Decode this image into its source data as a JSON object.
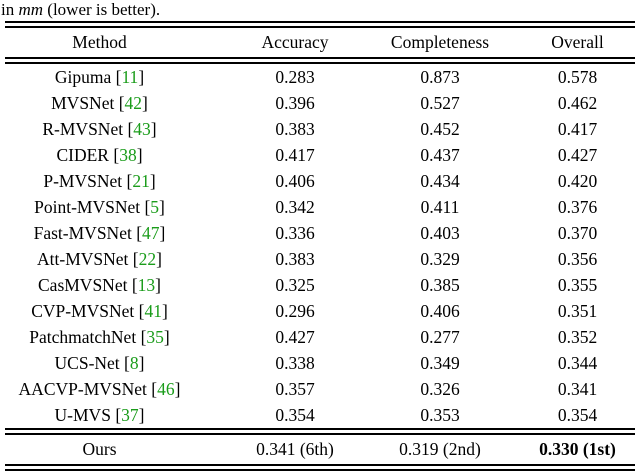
{
  "caption": {
    "prefix": "in ",
    "unit": "mm",
    "suffix": " (lower is better)."
  },
  "colors": {
    "citation_link": "#1a9c1a",
    "text": "#000000",
    "rule": "#000000"
  },
  "table": {
    "headers": [
      "Method",
      "Accuracy",
      "Completeness",
      "Overall"
    ],
    "cite_open": "[",
    "cite_close": "]",
    "rows": [
      {
        "method": "Gipuma",
        "cite": "11",
        "accuracy": "0.283",
        "completeness": "0.873",
        "overall": "0.578"
      },
      {
        "method": "MVSNet",
        "cite": "42",
        "accuracy": "0.396",
        "completeness": "0.527",
        "overall": "0.462"
      },
      {
        "method": "R-MVSNet",
        "cite": "43",
        "accuracy": "0.383",
        "completeness": "0.452",
        "overall": "0.417"
      },
      {
        "method": "CIDER",
        "cite": "38",
        "accuracy": "0.417",
        "completeness": "0.437",
        "overall": "0.427"
      },
      {
        "method": "P-MVSNet",
        "cite": "21",
        "accuracy": "0.406",
        "completeness": "0.434",
        "overall": "0.420"
      },
      {
        "method": "Point-MVSNet",
        "cite": "5",
        "accuracy": "0.342",
        "completeness": "0.411",
        "overall": "0.376"
      },
      {
        "method": "Fast-MVSNet",
        "cite": "47",
        "accuracy": "0.336",
        "completeness": "0.403",
        "overall": "0.370"
      },
      {
        "method": "Att-MVSNet",
        "cite": "22",
        "accuracy": "0.383",
        "completeness": "0.329",
        "overall": "0.356"
      },
      {
        "method": "CasMVSNet",
        "cite": "13",
        "accuracy": "0.325",
        "completeness": "0.385",
        "overall": "0.355"
      },
      {
        "method": "CVP-MVSNet",
        "cite": "41",
        "accuracy": "0.296",
        "completeness": "0.406",
        "overall": "0.351"
      },
      {
        "method": "PatchmatchNet",
        "cite": "35",
        "accuracy": "0.427",
        "completeness": "0.277",
        "overall": "0.352"
      },
      {
        "method": "UCS-Net",
        "cite": "8",
        "accuracy": "0.338",
        "completeness": "0.349",
        "overall": "0.344"
      },
      {
        "method": "AACVP-MVSNet",
        "cite": "46",
        "accuracy": "0.357",
        "completeness": "0.326",
        "overall": "0.341"
      },
      {
        "method": "U-MVS",
        "cite": "37",
        "accuracy": "0.354",
        "completeness": "0.353",
        "overall": "0.354"
      }
    ],
    "footer": {
      "method": "Ours",
      "accuracy": "0.341 (6th)",
      "completeness": "0.319 (2nd)",
      "overall": "0.330 (1st)"
    }
  }
}
